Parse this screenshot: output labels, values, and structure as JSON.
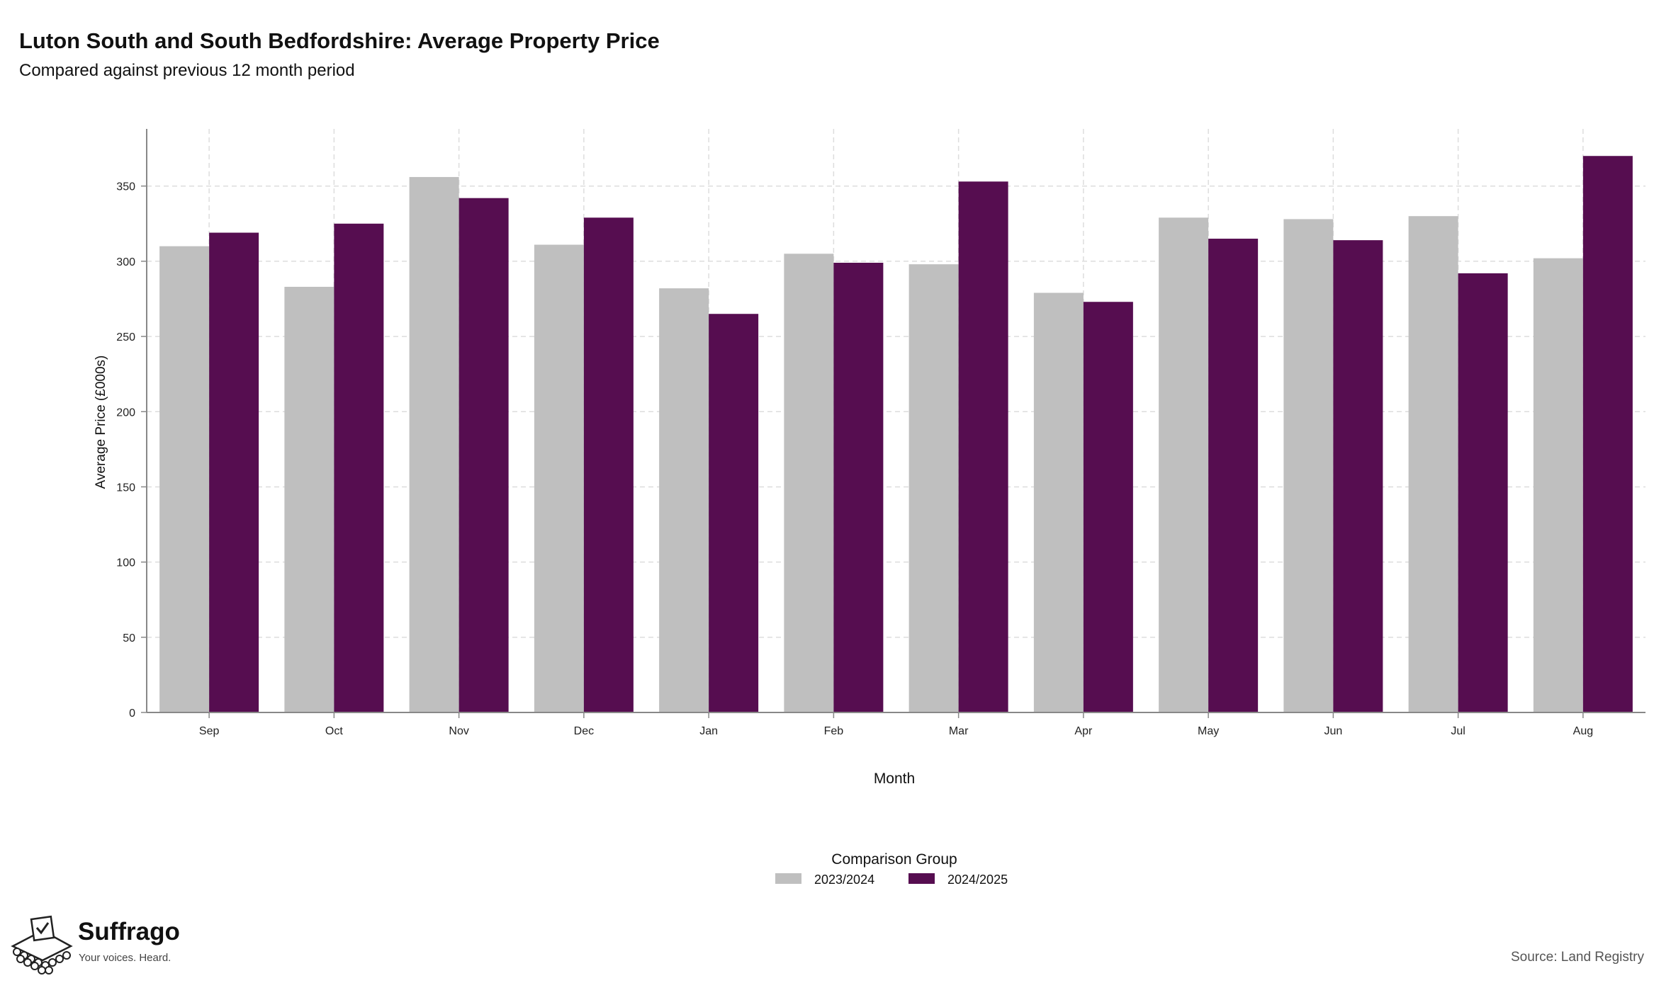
{
  "header": {
    "title": "Luton South and South Bedfordshire: Average Property Price",
    "subtitle": "Compared against previous 12 month period"
  },
  "chart_data": {
    "type": "bar",
    "title": "Luton South and South Bedfordshire: Average Property Price",
    "subtitle": "Compared against previous 12 month period",
    "xlabel": "Month",
    "ylabel": "Average Price (£000s)",
    "categories": [
      "Sep",
      "Oct",
      "Nov",
      "Dec",
      "Jan",
      "Feb",
      "Mar",
      "Apr",
      "May",
      "Jun",
      "Jul",
      "Aug"
    ],
    "series": [
      {
        "name": "2023/2024",
        "color": "#bfbfbf",
        "values": [
          310,
          283,
          356,
          311,
          282,
          305,
          298,
          279,
          329,
          328,
          330,
          302
        ]
      },
      {
        "name": "2024/2025",
        "color": "#560d50",
        "values": [
          319,
          325,
          342,
          329,
          265,
          299,
          353,
          273,
          315,
          314,
          292,
          370
        ]
      }
    ],
    "ylim": [
      0,
      388
    ],
    "yticks": [
      0,
      50,
      100,
      150,
      200,
      250,
      300,
      350
    ],
    "grid": true,
    "legend_title": "Comparison Group",
    "legend_position": "bottom"
  },
  "brand": {
    "name": "Suffrago",
    "tagline": "Your voices. Heard.",
    "icon": "ballot-box-icon"
  },
  "source": "Source: Land Registry"
}
